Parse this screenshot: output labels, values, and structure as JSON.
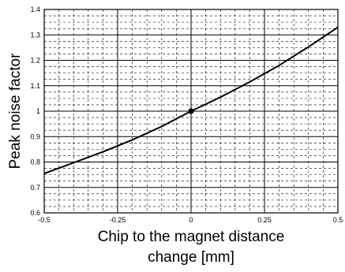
{
  "chart_data": {
    "type": "line",
    "xlabel_lines": [
      "Chip to the magnet distance",
      "change [mm]"
    ],
    "ylabel": "Peak noise factor",
    "xlim": [
      -0.5,
      0.5
    ],
    "ylim": [
      0.6,
      1.4
    ],
    "x_ticks": [
      -0.5,
      -0.25,
      0,
      0.25,
      0.5
    ],
    "x_tick_labels": [
      "-0.5",
      "-0.25",
      "0",
      "0.25",
      "0.5"
    ],
    "y_ticks": [
      0.6,
      0.7,
      0.8,
      0.9,
      1.0,
      1.1,
      1.2,
      1.3,
      1.4
    ],
    "y_tick_labels": [
      "0.6",
      "0.7",
      "0.8",
      "0.9",
      "1",
      "1.1",
      "1.2",
      "1.3",
      "1.4"
    ],
    "grid": true,
    "series": [
      {
        "x": [
          -0.5,
          -0.4,
          -0.3,
          -0.2,
          -0.1,
          0.0,
          0.1,
          0.2,
          0.3,
          0.4,
          0.5
        ],
        "values": [
          0.755,
          0.797,
          0.84,
          0.887,
          0.94,
          1.0,
          1.055,
          1.115,
          1.18,
          1.253,
          1.33
        ]
      }
    ],
    "marker_point": {
      "x": 0,
      "y": 1.0
    }
  }
}
